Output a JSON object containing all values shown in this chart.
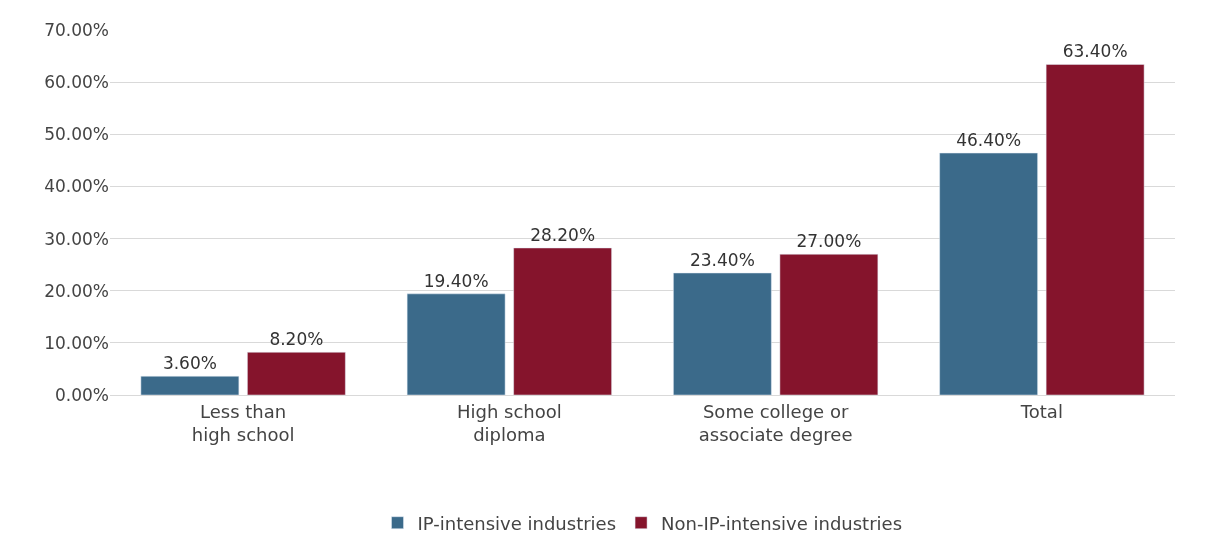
{
  "chart_data": {
    "type": "bar",
    "categories": [
      "Less than high school",
      "High school diploma",
      "Some college or associate degree",
      "Total"
    ],
    "series": [
      {
        "name": "IP-intensive industries",
        "color": "#3b6a8a",
        "values": [
          3.6,
          19.4,
          23.4,
          46.4
        ],
        "value_labels": [
          "3.60%",
          "19.40%",
          "23.40%",
          "46.40%"
        ]
      },
      {
        "name": "Non-IP-intensive industries",
        "color": "#85142c",
        "values": [
          8.2,
          28.2,
          27.0,
          63.4
        ],
        "value_labels": [
          "8.20%",
          "28.20%",
          "27.00%",
          "63.40%"
        ]
      }
    ],
    "ylim": [
      0,
      70
    ],
    "yticks": [
      {
        "value": 0,
        "label": "0.00%"
      },
      {
        "value": 10,
        "label": "10.00%"
      },
      {
        "value": 20,
        "label": "20.00%"
      },
      {
        "value": 30,
        "label": "30.00%"
      },
      {
        "value": 40,
        "label": "40.00%"
      },
      {
        "value": 50,
        "label": "50.00%"
      },
      {
        "value": 60,
        "label": "60.00%"
      },
      {
        "value": 70,
        "label": "70.00%"
      }
    ],
    "grid": "y",
    "legend": "bottom"
  }
}
